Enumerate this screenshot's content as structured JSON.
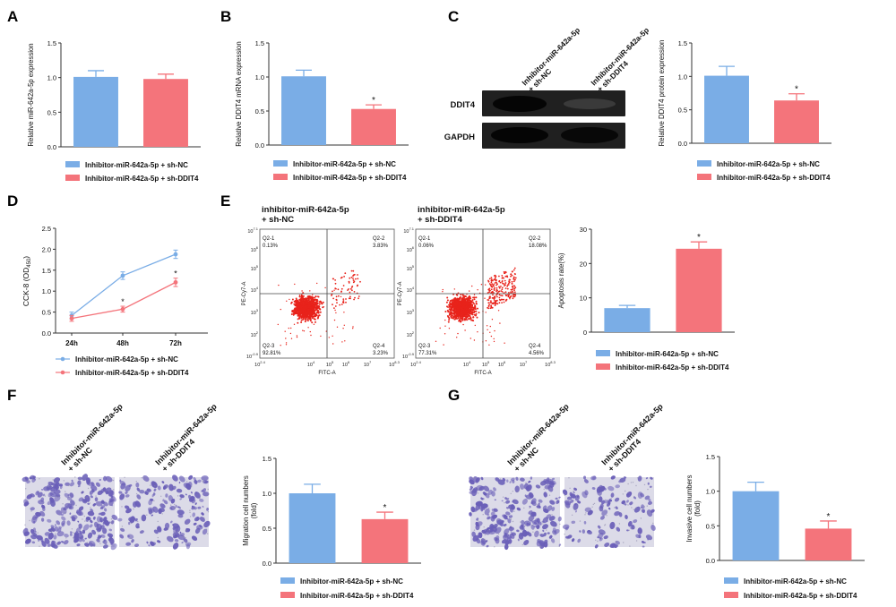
{
  "colors": {
    "nc": "#7aade6",
    "ddit4": "#f4747b",
    "axis": "#333333",
    "blot_bg": "#202020",
    "flow_dot": "#e8231b",
    "crystal": "#6a5fb8"
  },
  "panels": {
    "A": {
      "label": "A"
    },
    "B": {
      "label": "B"
    },
    "C": {
      "label": "C",
      "lanes": [
        "Inhibitor-miR-642a-5p\n+ sh-NC",
        "Inhibitor-miR-642a-5p\n+ sh-DDIT4"
      ],
      "rows": [
        "DDIT4",
        "GAPDH"
      ]
    },
    "D": {
      "label": "D"
    },
    "E": {
      "label": "E",
      "plots": [
        {
          "title": "inhibitor-miR-642a-5p\n+ sh-NC",
          "q1": "Q2-1\n0.13%",
          "q2": "Q2-2\n3.83%",
          "q3": "Q2-3\n92.81%",
          "q4": "Q2-4\n3.23%"
        },
        {
          "title": "inhibitor-miR-642a-5p\n+ sh-DDIT4",
          "q1": "Q2-1\n0.06%",
          "q2": "Q2-2\n18.08%",
          "q3": "Q2-3\n77.31%",
          "q4": "Q2-4\n4.56%"
        }
      ],
      "xaxis": "FITC-A",
      "yaxis": "PE-Cy7-A",
      "xticks": [
        "10^2.4",
        "10^4",
        "10^5",
        "10^6",
        "10^7",
        "10^8.3"
      ],
      "yticks": [
        "10^7.1",
        "10^6",
        "10^5",
        "10^4",
        "10^3",
        "10^2",
        "10^-0.9"
      ]
    },
    "F": {
      "label": "F",
      "lanes": [
        "Inhibitor-miR-642a-5p\n+ sh-NC",
        "Inhibitor-miR-642a-5p\n+ sh-DDIT4"
      ]
    },
    "G": {
      "label": "G",
      "lanes": [
        "Inhibitor-miR-642a-5p\n+ sh-NC",
        "Inhibitor-miR-642a-5p\n+ sh-DDIT4"
      ]
    }
  },
  "chart_data": [
    {
      "panel": "A",
      "type": "bar",
      "categories": [
        "Inhibitor-miR-642a-5p + sh-NC",
        "Inhibitor-miR-642a-5p + sh-DDIT4"
      ],
      "values": [
        1.01,
        0.98
      ],
      "errors": [
        0.09,
        0.07
      ],
      "ylabel": "Relative miR-642a-5p expression",
      "ylim": [
        0,
        1.5
      ],
      "yticks": [
        "0.0",
        "0.5",
        "1.0",
        "1.5"
      ],
      "significance": [
        "",
        ""
      ],
      "legend": [
        "Inhibitor-miR-642a-5p + sh-NC",
        "Inhibitor-miR-642a-5p + sh-DDIT4"
      ]
    },
    {
      "panel": "B",
      "type": "bar",
      "categories": [
        "Inhibitor-miR-642a-5p + sh-NC",
        "Inhibitor-miR-642a-5p + sh-DDIT4"
      ],
      "values": [
        1.01,
        0.53
      ],
      "errors": [
        0.09,
        0.06
      ],
      "ylabel": "Relative DDIT4 mRNA expression",
      "ylim": [
        0,
        1.5
      ],
      "yticks": [
        "0.0",
        "0.5",
        "1.0",
        "1.5"
      ],
      "significance": [
        "",
        "*"
      ],
      "legend": [
        "Inhibitor-miR-642a-5p + sh-NC",
        "Inhibitor-miR-642a-5p + sh-DDIT4"
      ]
    },
    {
      "panel": "C",
      "type": "bar",
      "categories": [
        "Inhibitor-miR-642a-5p + sh-NC",
        "Inhibitor-miR-642a-5p + sh-DDIT4"
      ],
      "values": [
        1.01,
        0.64
      ],
      "errors": [
        0.14,
        0.1
      ],
      "ylabel": "Relative DDIT4 protein expression",
      "ylim": [
        0,
        1.5
      ],
      "yticks": [
        "0.0",
        "0.5",
        "1.0",
        "1.5"
      ],
      "significance": [
        "",
        "*"
      ],
      "legend": [
        "Inhibitor-miR-642a-5p + sh-NC",
        "Inhibitor-miR-642a-5p + sh-DDIT4"
      ]
    },
    {
      "panel": "D",
      "type": "line",
      "x": [
        "24h",
        "48h",
        "72h"
      ],
      "ylabel": "CCK-8 (OD450)",
      "ylim": [
        0,
        2.5
      ],
      "yticks": [
        "0.0",
        "0.5",
        "1.0",
        "1.5",
        "2.0",
        "2.5"
      ],
      "series": [
        {
          "name": "Inhibitor-miR-642a-5p + sh-NC",
          "values": [
            0.42,
            1.37,
            1.88
          ],
          "errors": [
            0.08,
            0.09,
            0.1
          ],
          "significance": [
            "",
            "",
            ""
          ]
        },
        {
          "name": "Inhibitor-miR-642a-5p + sh-DDIT4",
          "values": [
            0.35,
            0.57,
            1.21
          ],
          "errors": [
            0.07,
            0.07,
            0.1
          ],
          "significance": [
            "",
            "*",
            "*"
          ]
        }
      ]
    },
    {
      "panel": "E",
      "type": "bar",
      "categories": [
        "Inhibitor-miR-642a-5p + sh-NC",
        "Inhibitor-miR-642a-5p + sh-DDIT4"
      ],
      "values": [
        7.0,
        24.3
      ],
      "errors": [
        0.8,
        2.0
      ],
      "ylabel": "Apoptosis rate(%)",
      "ylim": [
        0,
        30
      ],
      "yticks": [
        "0",
        "10",
        "20",
        "30"
      ],
      "significance": [
        "",
        "*"
      ],
      "legend": [
        "Inhibitor-miR-642a-5p + sh-NC",
        "Inhibitor-miR-642a-5p + sh-DDIT4"
      ]
    },
    {
      "panel": "F",
      "type": "bar",
      "categories": [
        "Inhibitor-miR-642a-5p + sh-NC",
        "Inhibitor-miR-642a-5p + sh-DDIT4"
      ],
      "values": [
        1.0,
        0.63
      ],
      "errors": [
        0.13,
        0.1
      ],
      "ylabel": "Migration cell numbers\n(fold)",
      "ylim": [
        0,
        1.5
      ],
      "yticks": [
        "0.0",
        "0.5",
        "1.0",
        "1.5"
      ],
      "significance": [
        "",
        "*"
      ],
      "legend": [
        "Inhibitor-miR-642a-5p + sh-NC",
        "Inhibitor-miR-642a-5p + sh-DDIT4"
      ]
    },
    {
      "panel": "G",
      "type": "bar",
      "categories": [
        "Inhibitor-miR-642a-5p + sh-NC",
        "Inhibitor-miR-642a-5p + sh-DDIT4"
      ],
      "values": [
        1.0,
        0.46
      ],
      "errors": [
        0.13,
        0.11
      ],
      "ylabel": "Invasive cell numbers\n(fold)",
      "ylim": [
        0,
        1.5
      ],
      "yticks": [
        "0.0",
        "0.5",
        "1.0",
        "1.5"
      ],
      "significance": [
        "",
        "*"
      ],
      "legend": [
        "Inhibitor-miR-642a-5p + sh-NC",
        "Inhibitor-miR-642a-5p + sh-DDIT4"
      ]
    }
  ]
}
